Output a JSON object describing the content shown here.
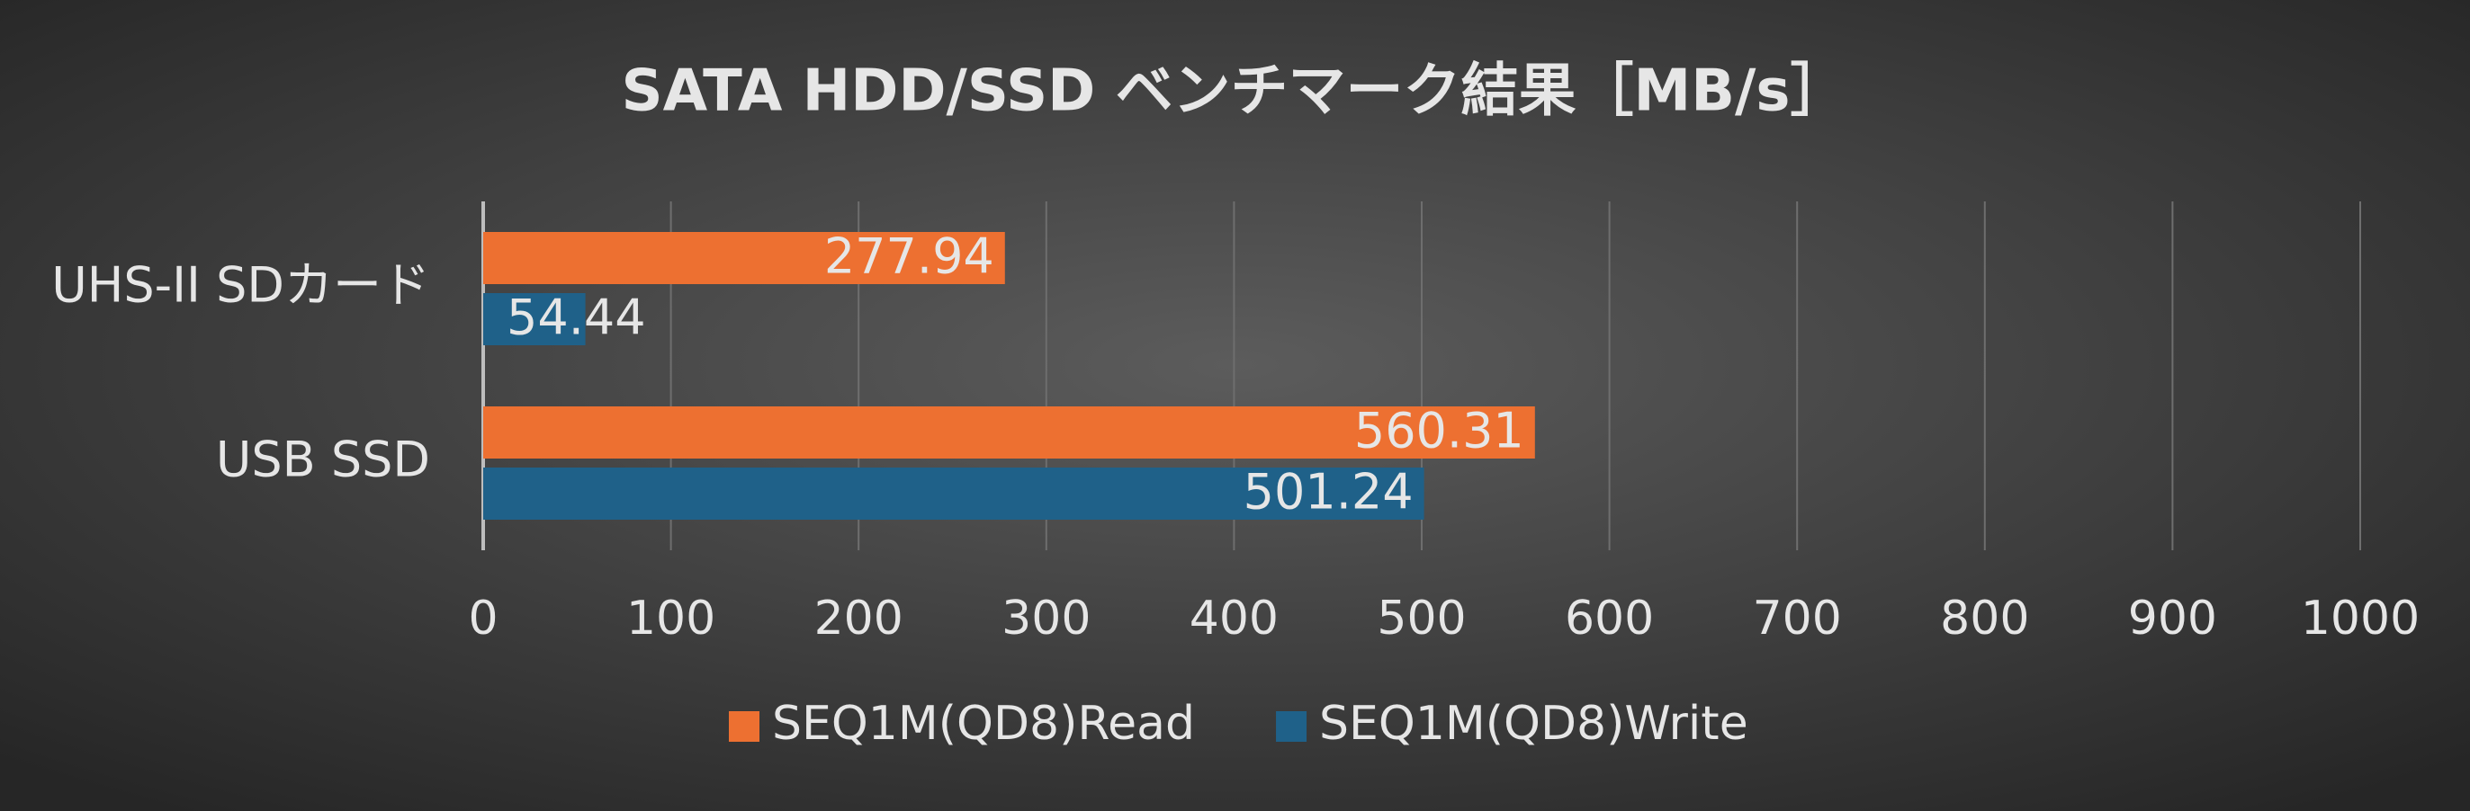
{
  "chart_data": {
    "type": "bar",
    "orientation": "horizontal",
    "title": "SATA HDD/SSD ベンチマーク結果［MB/s］",
    "categories": [
      "UHS-II SDカード",
      "USB SSD"
    ],
    "series": [
      {
        "name": "SEQ1M(QD8)Read",
        "color": "#ed7031",
        "values": [
          277.94,
          560.31
        ]
      },
      {
        "name": "SEQ1M(QD8)Write",
        "color": "#1f6189",
        "values": [
          54.44,
          501.24
        ]
      }
    ],
    "xlim": [
      0,
      1000
    ],
    "xticks": [
      0,
      100,
      200,
      300,
      400,
      500,
      600,
      700,
      800,
      900,
      1000
    ],
    "grid": true,
    "legend": "bottom"
  }
}
